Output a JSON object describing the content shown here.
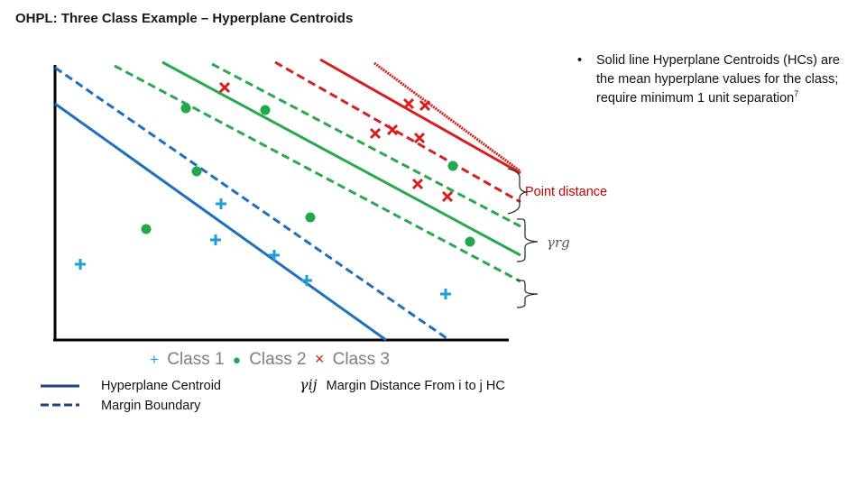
{
  "title": "OHPL: Three Class Example – Hyperplane Centroids",
  "bullet": {
    "marker": "•",
    "text": "Solid line Hyperplane Centroids (HCs) are the mean hyperplane values for the class; require minimum 1 unit separation",
    "superscript": "7"
  },
  "annotations": {
    "point_distance": "Point distance",
    "gamma_rg": "γrg"
  },
  "legend": {
    "class1": "Class 1",
    "class2": "Class 2",
    "class3": "Class 3",
    "class1_marker": "+",
    "class2_marker": "●",
    "class3_marker": "×",
    "solid_line": "Hyperplane Centroid",
    "dashed_line": "Margin Boundary",
    "gamma_symbol": "γij",
    "gamma_text": "Margin Distance From i to j HC"
  },
  "colors": {
    "class1": "#1e9fd6",
    "class2": "#22a84a",
    "class3": "#d91c1c",
    "hc_blue": "#1f6fbf",
    "hc_green": "#2aa84f",
    "hc_red": "#d42020",
    "axis": "#000000"
  }
}
